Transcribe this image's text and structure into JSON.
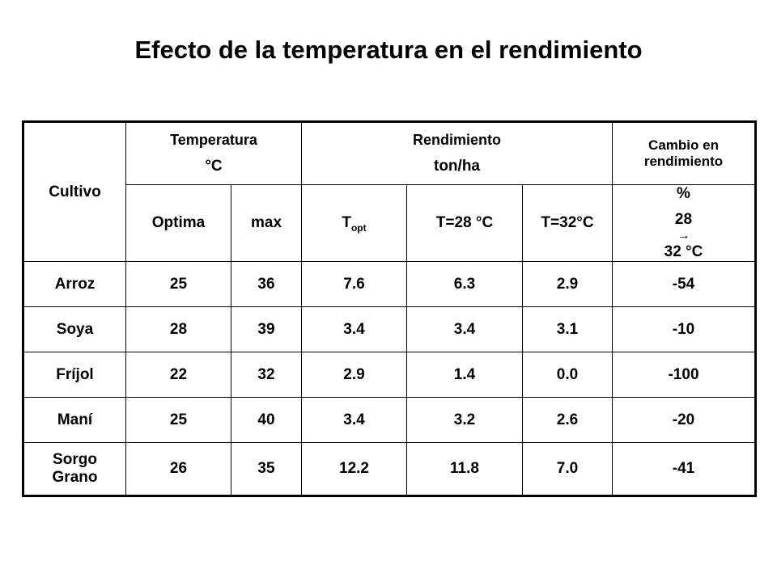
{
  "title": "Efecto de la temperatura en el rendimiento",
  "table": {
    "header": {
      "cultivo": "Cultivo",
      "temperatura_line1": "Temperatura",
      "temperatura_line2": "°C",
      "rendimiento_line1": "Rendimiento",
      "rendimiento_line2": "ton/ha",
      "cambio": "Cambio en rendimiento",
      "optima": "Optima",
      "max": "max",
      "t_opt_main": "T",
      "t_opt_sub": "opt",
      "t28": "T=28 °C",
      "t32": "T=32°C",
      "pct_line1": "%",
      "pct_from": "28",
      "pct_arrow": "→",
      "pct_to": "32 °C"
    },
    "rows": [
      {
        "cultivo": "Arroz",
        "optima": "25",
        "max": "36",
        "t_opt": "7.6",
        "t28": "6.3",
        "t32": "2.9",
        "cambio": "-54"
      },
      {
        "cultivo": "Soya",
        "optima": "28",
        "max": "39",
        "t_opt": "3.4",
        "t28": "3.4",
        "t32": "3.1",
        "cambio": "-10"
      },
      {
        "cultivo": "Fríjol",
        "optima": "22",
        "max": "32",
        "t_opt": "2.9",
        "t28": "1.4",
        "t32": "0.0",
        "cambio": "-100"
      },
      {
        "cultivo": "Maní",
        "optima": "25",
        "max": "40",
        "t_opt": "3.4",
        "t28": "3.2",
        "t32": "2.6",
        "cambio": "-20"
      },
      {
        "cultivo": "Sorgo Grano",
        "cultivo_line1": "Sorgo",
        "cultivo_line2": "Grano",
        "optima": "26",
        "max": "35",
        "t_opt": "12.2",
        "t28": "11.8",
        "t32": "7.0",
        "cambio": "-41"
      }
    ]
  }
}
